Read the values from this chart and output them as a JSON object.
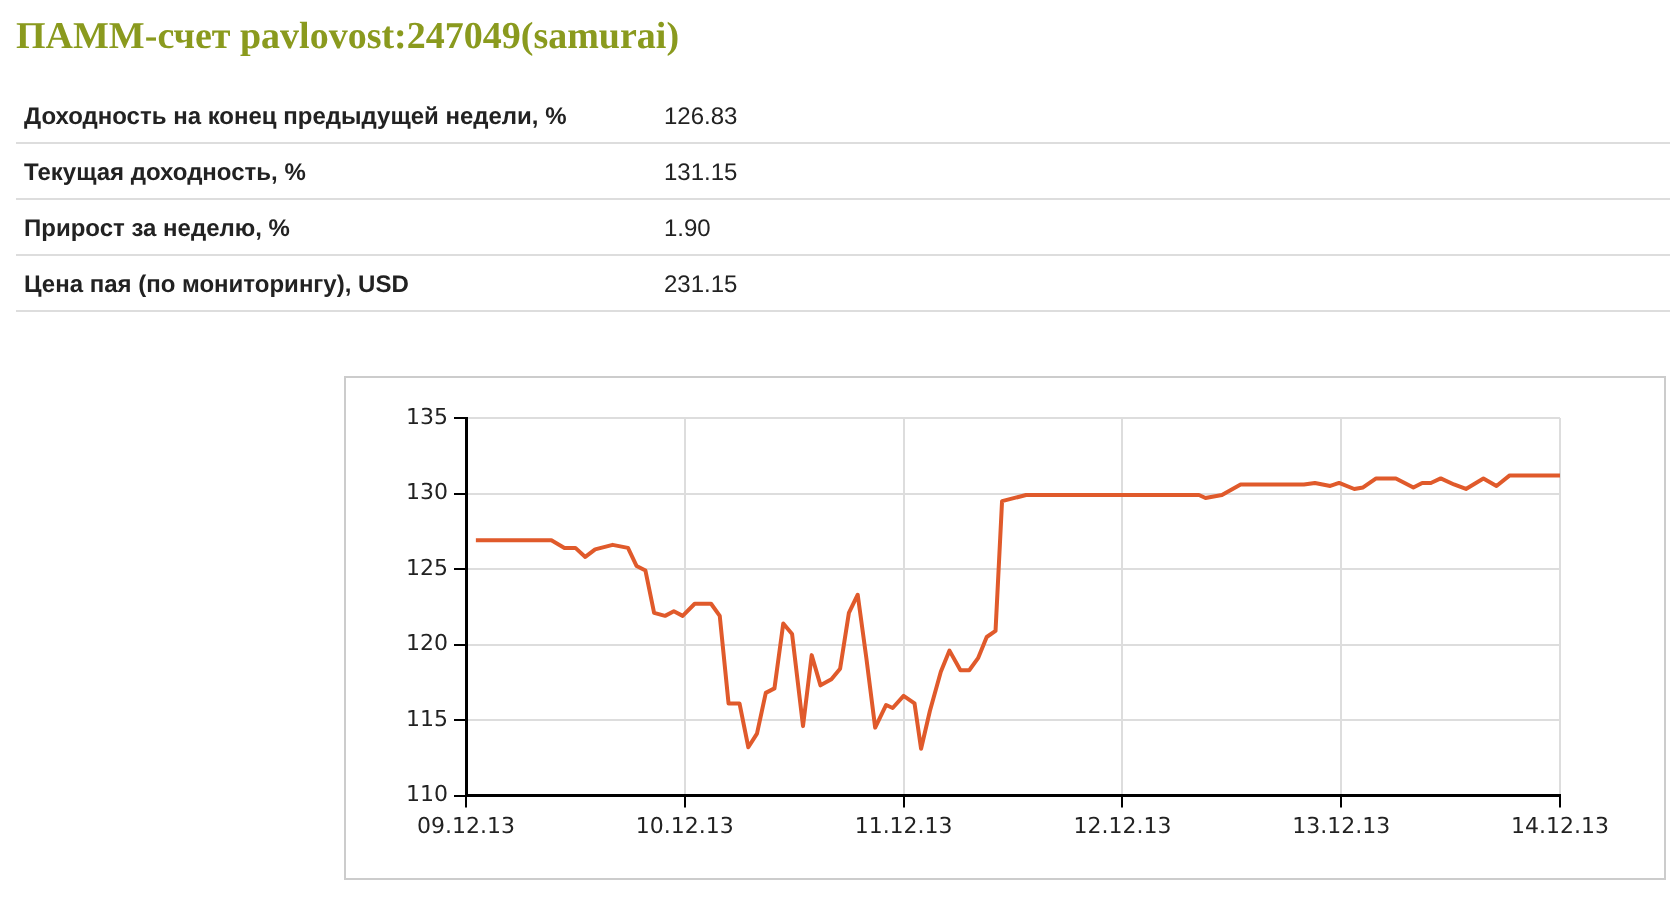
{
  "chart_data": {
    "type": "line",
    "title": "ПАММ-счет pavlovost:247049(samurai)",
    "annotations": [
      "Доходность на конец предыдущей недели, %",
      "126.83",
      "Текущая доходность, %",
      "131.15",
      "Прирост за неделю, %",
      "1.90",
      "Цена пая (по мониторингу), USD",
      "231.15"
    ],
    "x": [
      "--12-09T01:05",
      "--12-09T09:22",
      "--12-09T10:48",
      "--12-09T12:00",
      "--12-09T13:05",
      "--12-09T14:10",
      "--12-09T16:05",
      "--12-09T17:46",
      "--12-09T18:43",
      "--12-09T19:41",
      "--12-09T20:38",
      "--12-09T21:50",
      "--12-09T22:48",
      "--12-09T23:46",
      "--12-10T01:05",
      "--12-10T02:53",
      "--12-10T03:50",
      "--12-10T04:48",
      "--12-10T06:00",
      "--12-10T06:58",
      "--12-10T07:55",
      "--12-10T08:53",
      "--12-10T09:50",
      "--12-10T10:48",
      "--12-10T11:46",
      "--12-10T12:58",
      "--12-10T13:55",
      "--12-10T14:53",
      "--12-10T16:05",
      "--12-10T17:02",
      "--12-10T18:00",
      "--12-10T18:58",
      "--12-10T19:55",
      "--12-10T20:53",
      "--12-10T22:05",
      "--12-10T22:48",
      "--12-11T00:00",
      "--12-11T01:12",
      "--12-11T01:55",
      "--12-11T02:53",
      "--12-11T04:05",
      "--12-11T05:02",
      "--12-11T06:14",
      "--12-11T07:12",
      "--12-11T08:10",
      "--12-11T09:07",
      "--12-11T10:05",
      "--12-11T10:48",
      "--12-11T13:26",
      "--12-12T08:24",
      "--12-12T09:07",
      "--12-12T10:55",
      "--12-12T12:58",
      "--12-12T19:55",
      "--12-12T21:07",
      "--12-12T22:48",
      "--12-12T23:46",
      "--12-13T01:26",
      "--12-13T02:24",
      "--12-13T03:50",
      "--12-13T06:00",
      "--12-13T07:55",
      "--12-13T08:53",
      "--12-13T09:50",
      "--12-13T10:55",
      "--12-13T12:22",
      "--12-13T13:41",
      "--12-13T15:36",
      "--12-13T17:02",
      "--12-13T18:29",
      "--12-14T00:00"
    ],
    "series": [
      {
        "color": "#e05a2b",
        "values": [
          126.9,
          126.9,
          126.4,
          126.4,
          125.8,
          126.3,
          126.6,
          126.4,
          125.2,
          124.9,
          122.1,
          121.9,
          122.2,
          121.9,
          122.7,
          122.7,
          121.9,
          116.1,
          116.1,
          113.2,
          114.1,
          116.8,
          117.1,
          121.4,
          120.7,
          114.6,
          119.3,
          117.3,
          117.7,
          118.4,
          122.1,
          123.3,
          119.1,
          114.5,
          116.0,
          115.8,
          116.6,
          116.1,
          113.1,
          115.6,
          118.2,
          119.6,
          118.3,
          118.3,
          119.1,
          120.5,
          120.9,
          129.5,
          129.9,
          129.9,
          129.7,
          129.9,
          130.6,
          130.6,
          130.7,
          130.5,
          130.7,
          130.3,
          130.4,
          131.0,
          131.0,
          130.4,
          130.7,
          130.7,
          131.0,
          130.6,
          130.3,
          131.0,
          130.5,
          131.2,
          131.2
        ]
      }
    ],
    "xlim": [
      "--12-09",
      "--12-14"
    ],
    "xticks": [
      {
        "value": "--12-09",
        "label": "09.12.13"
      },
      {
        "value": "--12-10",
        "label": "10.12.13"
      },
      {
        "value": "--12-11",
        "label": "11.12.13"
      },
      {
        "value": "--12-12",
        "label": "12.12.13"
      },
      {
        "value": "--12-13",
        "label": "13.12.13"
      },
      {
        "value": "--12-14",
        "label": "14.12.13"
      }
    ],
    "ylim": [
      110,
      135
    ],
    "yticks": [
      110,
      115,
      120,
      125,
      130,
      135
    ],
    "grid": true,
    "legend": false,
    "marker": "none",
    "line_style": "solid"
  }
}
